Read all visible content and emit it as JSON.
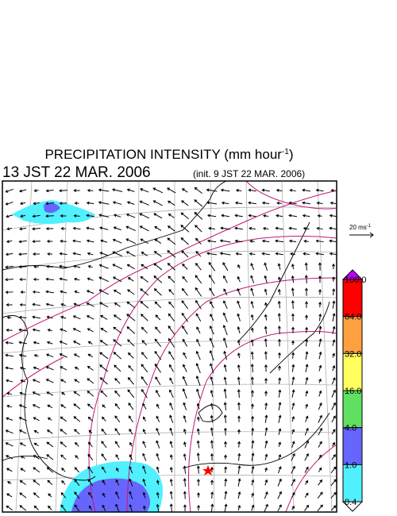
{
  "header": {
    "title": "PRECIPITATION INTENSITY (mm hour",
    "title_exp": "-1",
    "title_end": ")",
    "valid_time": "13 JST 22 MAR. 2006",
    "init_time": "(init. 9 JST 22 MAR. 2006)"
  },
  "scale": {
    "label": "20 ms",
    "exp": "-1"
  },
  "colorbar": {
    "top_color": "#c000ff",
    "bottom_color": "#ffffff",
    "levels": [
      {
        "label": "100.0",
        "color": "#ff0000"
      },
      {
        "label": "64.0",
        "color": "#ffa040"
      },
      {
        "label": "32.0",
        "color": "#ffff60"
      },
      {
        "label": "16.0",
        "color": "#60e060"
      },
      {
        "label": "4.0",
        "color": "#6666ff"
      },
      {
        "label": "1.0",
        "color": "#50f0ff"
      },
      {
        "label": "0.4"
      }
    ]
  }
}
